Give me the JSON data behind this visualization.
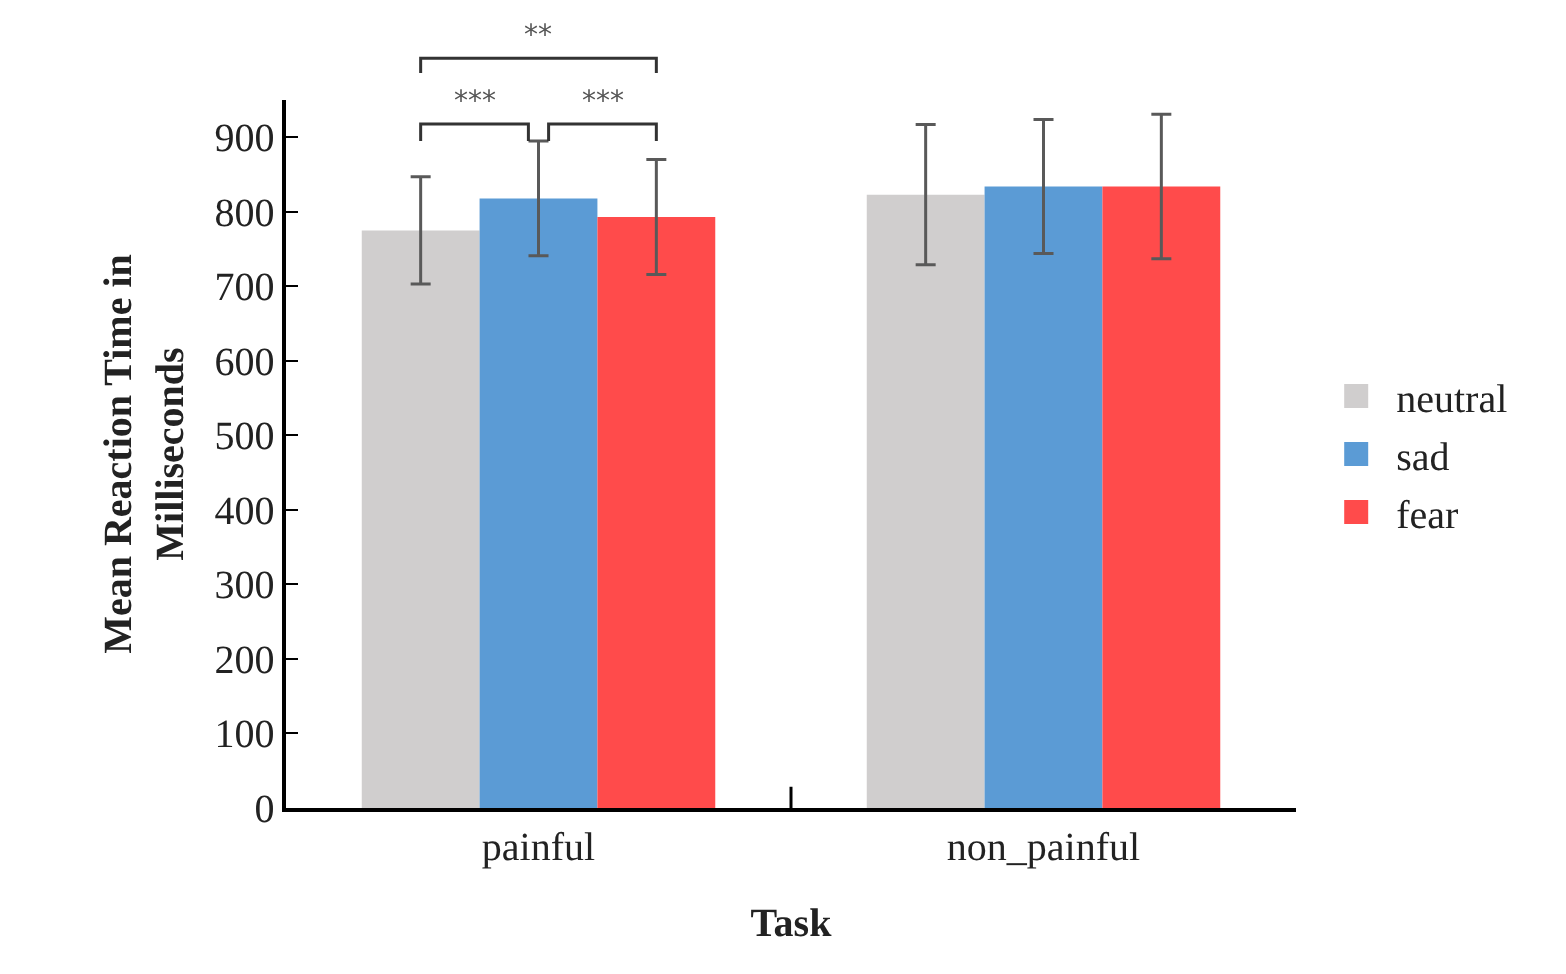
{
  "chart_data": {
    "type": "bar",
    "xlabel": "Task",
    "ylabel": "Mean Reaction Time in Milliseconds",
    "categories": [
      "painful",
      "non_painful"
    ],
    "series": [
      {
        "name": "neutral",
        "color": "#d0cece",
        "values": [
          775,
          823
        ],
        "errors": [
          72,
          94
        ]
      },
      {
        "name": "sad",
        "color": "#5b9bd5",
        "values": [
          818,
          834
        ],
        "errors": [
          77,
          90
        ]
      },
      {
        "name": "fear",
        "color": "#ff4b4b",
        "values": [
          793,
          834
        ],
        "errors": [
          77,
          97
        ]
      }
    ],
    "ylim": [
      0,
      950
    ],
    "yticks": [
      0,
      100,
      200,
      300,
      400,
      500,
      600,
      700,
      800,
      900
    ],
    "grid": false,
    "legend": "right",
    "annotations": [
      "***",
      "***",
      "**"
    ]
  }
}
